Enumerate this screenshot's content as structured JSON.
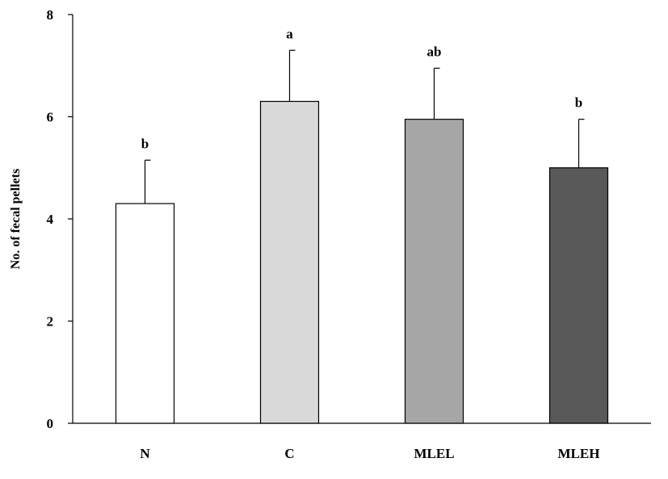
{
  "chart_data": {
    "type": "bar",
    "categories": [
      "N",
      "C",
      "MLEL",
      "MLEH"
    ],
    "values": [
      4.3,
      6.3,
      5.95,
      5.0
    ],
    "errors": [
      0.85,
      1.0,
      1.0,
      0.95
    ],
    "significance_labels": [
      "b",
      "a",
      "ab",
      "b"
    ],
    "bar_colors": [
      "#ffffff",
      "#d9d9d9",
      "#a6a6a6",
      "#595959"
    ],
    "ylabel": "No. of fecal pellets",
    "xlabel": "",
    "title": "",
    "ylim": [
      0,
      8
    ],
    "yticks": [
      "0",
      "2",
      "4",
      "6",
      "8"
    ],
    "ytick_values": [
      0,
      2,
      4,
      6,
      8
    ],
    "grid": false,
    "legend": "none"
  }
}
